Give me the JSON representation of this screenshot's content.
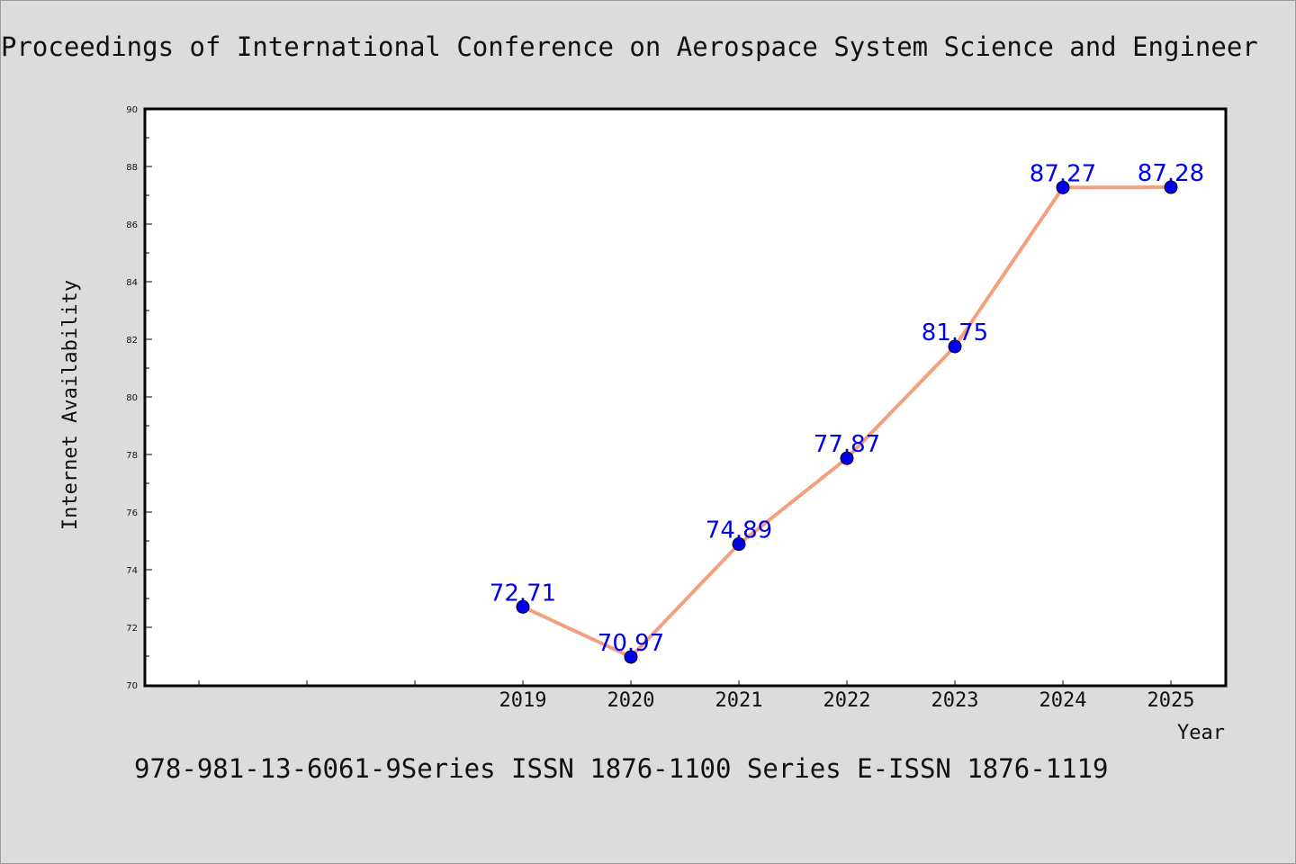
{
  "header": {
    "title": "Proceedings of International Conference on Aerospace System Science and Engineer"
  },
  "footer": {
    "caption": "978-981-13-6061-9Series ISSN 1876-1100 Series E-ISSN 1876-1119"
  },
  "chart_data": {
    "type": "line",
    "xlabel": "Year",
    "ylabel": "Internet Availability",
    "x": [
      "2019",
      "2020",
      "2021",
      "2022",
      "2023",
      "2024",
      "2025"
    ],
    "values": [
      72.71,
      70.97,
      74.89,
      77.87,
      81.75,
      87.27,
      87.28
    ],
    "data_labels": [
      "72.71",
      "70.97",
      "74.89",
      "77.87",
      "81.75",
      "87.27",
      "87.28"
    ],
    "ylim": [
      70,
      90
    ],
    "yticks": [
      "70",
      "72",
      "74",
      "76",
      "78",
      "80",
      "82",
      "84",
      "86",
      "88",
      "90"
    ],
    "grid": false,
    "line_color": "#f4a080",
    "marker_color": "#0000ee",
    "label_color": "#0000ee"
  }
}
